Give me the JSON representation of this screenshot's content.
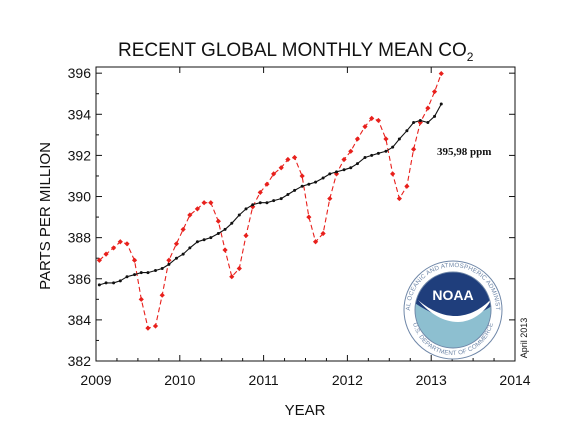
{
  "chart_data": {
    "type": "line",
    "title_main": "RECENT GLOBAL MONTHLY MEAN CO",
    "title_sub": "2",
    "xlabel": "YEAR",
    "ylabel": "PARTS PER MILLION",
    "xlim": [
      2009,
      2014
    ],
    "ylim": [
      382,
      396.3
    ],
    "x_ticks": [
      "2009",
      "2010",
      "2011",
      "2012",
      "2013",
      "2014"
    ],
    "y_ticks": [
      "382",
      "384",
      "386",
      "388",
      "390",
      "392",
      "394",
      "396"
    ],
    "grid": false,
    "annotation": "395,98 ppm",
    "date_label": "April 2013",
    "series": [
      {
        "style": "red-dashed-diamonds",
        "color": "#e8201c",
        "x": [
          2009.04,
          2009.12,
          2009.21,
          2009.29,
          2009.37,
          2009.46,
          2009.54,
          2009.62,
          2009.71,
          2009.79,
          2009.87,
          2009.96,
          2010.04,
          2010.12,
          2010.21,
          2010.29,
          2010.37,
          2010.46,
          2010.54,
          2010.62,
          2010.71,
          2010.79,
          2010.87,
          2010.96,
          2011.04,
          2011.12,
          2011.21,
          2011.29,
          2011.37,
          2011.46,
          2011.54,
          2011.62,
          2011.71,
          2011.79,
          2011.87,
          2011.96,
          2012.04,
          2012.12,
          2012.21,
          2012.29,
          2012.37,
          2012.46,
          2012.54,
          2012.62,
          2012.71,
          2012.79,
          2012.87,
          2012.96,
          2013.04,
          2013.12
        ],
        "values": [
          386.9,
          387.2,
          387.5,
          387.8,
          387.7,
          386.9,
          385.0,
          383.6,
          383.7,
          385.2,
          386.9,
          387.7,
          388.4,
          389.1,
          389.4,
          389.7,
          389.7,
          388.8,
          387.4,
          386.1,
          386.5,
          388.1,
          389.5,
          390.2,
          390.6,
          391.1,
          391.4,
          391.8,
          391.9,
          391.0,
          389.0,
          387.8,
          388.2,
          389.9,
          391.1,
          391.8,
          392.2,
          392.8,
          393.4,
          393.8,
          393.7,
          392.8,
          391.1,
          389.9,
          390.5,
          392.3,
          393.6,
          394.3,
          395.1,
          395.98
        ]
      },
      {
        "style": "black-solid-dots",
        "color": "#111111",
        "x": [
          2009.04,
          2009.12,
          2009.21,
          2009.29,
          2009.37,
          2009.46,
          2009.54,
          2009.62,
          2009.71,
          2009.79,
          2009.87,
          2009.96,
          2010.04,
          2010.12,
          2010.21,
          2010.29,
          2010.37,
          2010.46,
          2010.54,
          2010.62,
          2010.71,
          2010.79,
          2010.87,
          2010.96,
          2011.04,
          2011.12,
          2011.21,
          2011.29,
          2011.37,
          2011.46,
          2011.54,
          2011.62,
          2011.71,
          2011.79,
          2011.87,
          2011.96,
          2012.04,
          2012.12,
          2012.21,
          2012.29,
          2012.37,
          2012.46,
          2012.54,
          2012.62,
          2012.71,
          2012.79,
          2012.87,
          2012.96,
          2013.04,
          2013.12
        ],
        "values": [
          385.7,
          385.8,
          385.8,
          385.9,
          386.1,
          386.2,
          386.3,
          386.3,
          386.4,
          386.5,
          386.7,
          387.0,
          387.2,
          387.5,
          387.8,
          387.9,
          388.0,
          388.2,
          388.4,
          388.7,
          389.1,
          389.4,
          389.6,
          389.7,
          389.7,
          389.8,
          389.9,
          390.1,
          390.3,
          390.5,
          390.6,
          390.7,
          390.9,
          391.1,
          391.2,
          391.3,
          391.4,
          391.6,
          391.9,
          392.0,
          392.1,
          392.2,
          392.4,
          392.8,
          393.2,
          393.6,
          393.7,
          393.6,
          393.9,
          394.5
        ]
      }
    ]
  },
  "logo": {
    "center_text": "NOAA",
    "ring_top": "NATIONAL OCEANIC AND ATMOSPHERIC ADMINISTRATION",
    "ring_bottom": "U.S. DEPARTMENT OF COMMERCE",
    "colors": {
      "navy": "#1f3e7c",
      "sky": "#b9c4dd",
      "sea": "#8dbfd0",
      "ring": "#6f87a8"
    }
  }
}
